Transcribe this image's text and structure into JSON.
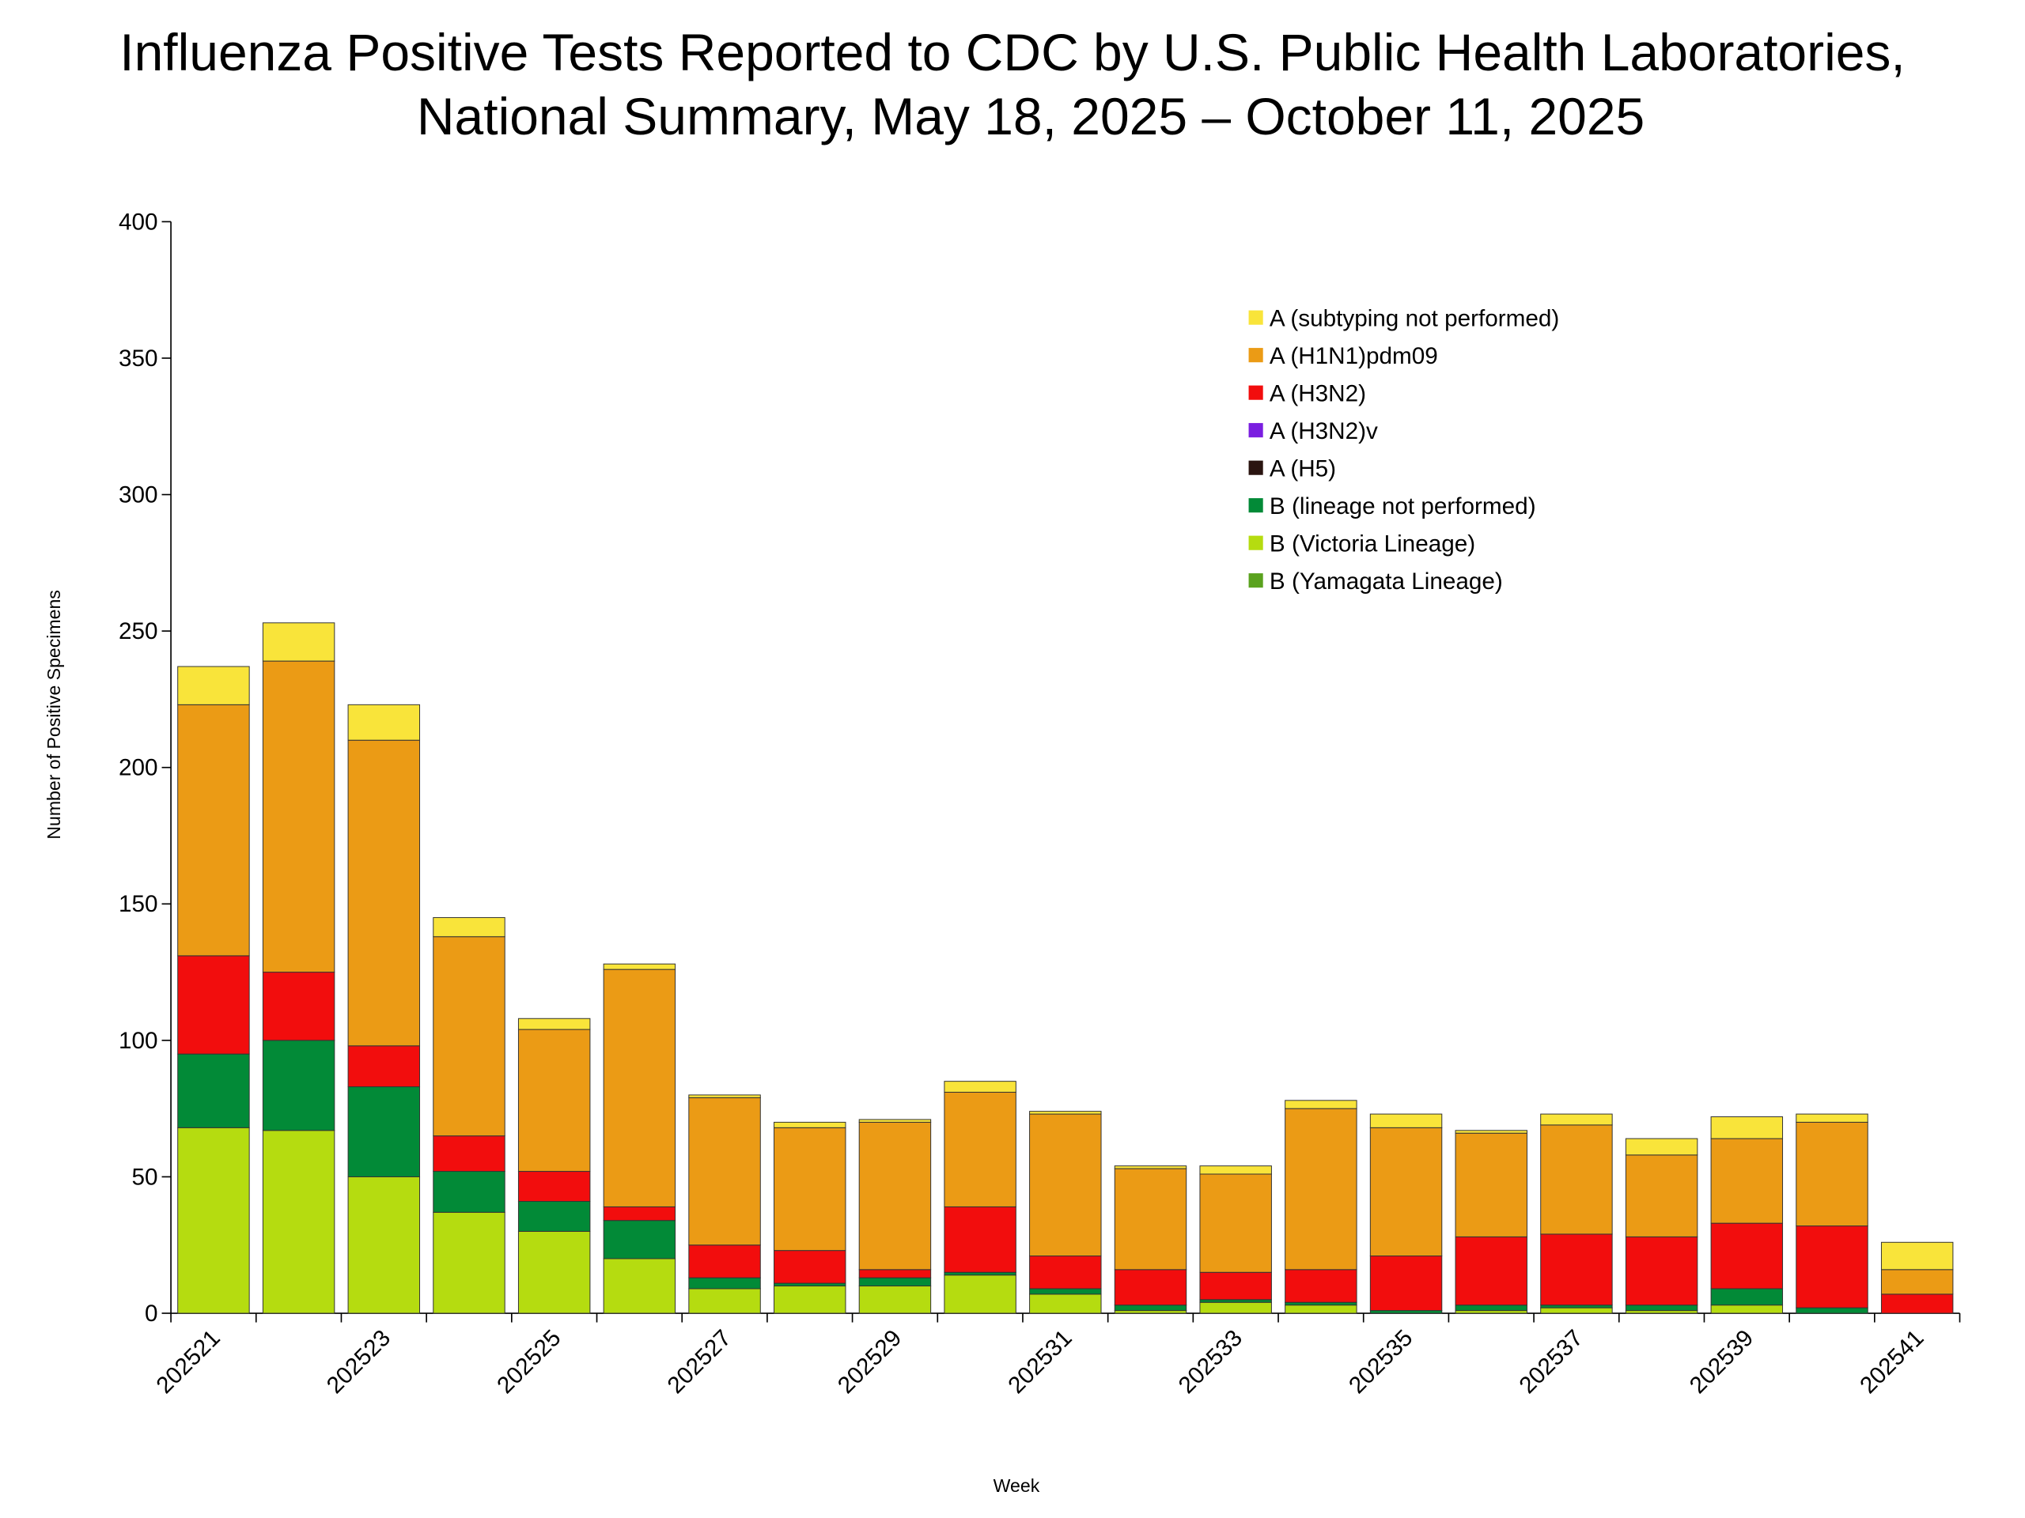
{
  "chart_data": {
    "type": "stacked-bar",
    "title": "Influenza Positive Tests Reported to CDC by U.S. Public Health Laboratories,",
    "subtitle": "National Summary, May 18, 2025 – October 11, 2025",
    "x_label": "Week",
    "y_label": "Number of Positive Specimens",
    "categories": [
      "202521",
      null,
      "202523",
      null,
      "202525",
      null,
      "202527",
      null,
      "202529",
      null,
      "202531",
      null,
      "202533",
      null,
      "202535",
      null,
      "202537",
      null,
      "202539",
      null,
      "202541"
    ],
    "series": [
      {
        "name": "A (subtyping not performed)",
        "color": "#f9e43a",
        "values": [
          14,
          14,
          13,
          7,
          4,
          2,
          1,
          2,
          1,
          4,
          1,
          1,
          3,
          3,
          5,
          1,
          4,
          6,
          8,
          3,
          10
        ]
      },
      {
        "name": "A (H1N1)pdm09",
        "color": "#eb9b15",
        "values": [
          92,
          114,
          112,
          73,
          52,
          87,
          54,
          45,
          54,
          42,
          52,
          37,
          36,
          59,
          47,
          38,
          40,
          30,
          31,
          38,
          9
        ]
      },
      {
        "name": "A (H3N2)",
        "color": "#f20d0d",
        "values": [
          36,
          25,
          15,
          13,
          11,
          5,
          12,
          12,
          3,
          24,
          12,
          13,
          10,
          12,
          20,
          25,
          26,
          25,
          24,
          30,
          7
        ]
      },
      {
        "name": "A (H3N2)v",
        "color": "#7a1ee0",
        "values": [
          0,
          0,
          0,
          0,
          0,
          0,
          0,
          0,
          0,
          0,
          0,
          0,
          0,
          0,
          0,
          0,
          0,
          0,
          0,
          0,
          0
        ]
      },
      {
        "name": "A (H5)",
        "color": "#2a1410",
        "values": [
          0,
          0,
          0,
          0,
          0,
          0,
          0,
          0,
          0,
          0,
          0,
          0,
          0,
          0,
          0,
          0,
          0,
          0,
          0,
          0,
          0
        ]
      },
      {
        "name": "B (lineage not performed)",
        "color": "#028a37",
        "values": [
          27,
          33,
          33,
          15,
          11,
          14,
          4,
          1,
          3,
          1,
          2,
          2,
          1,
          1,
          1,
          2,
          1,
          2,
          6,
          2,
          0
        ]
      },
      {
        "name": "B (Victoria Lineage)",
        "color": "#b5dc10",
        "values": [
          68,
          67,
          50,
          37,
          30,
          20,
          9,
          10,
          10,
          14,
          7,
          1,
          4,
          3,
          0,
          1,
          2,
          1,
          3,
          0,
          0
        ]
      },
      {
        "name": "B (Yamagata Lineage)",
        "color": "#5aa21e",
        "values": [
          0,
          0,
          0,
          0,
          0,
          0,
          0,
          0,
          0,
          0,
          0,
          0,
          0,
          0,
          0,
          0,
          0,
          0,
          0,
          0,
          0
        ]
      }
    ],
    "ylim": [
      0,
      400
    ],
    "yticks": [
      0,
      50,
      100,
      150,
      200,
      250,
      300,
      350,
      400
    ],
    "grid": false,
    "legend": "top-right"
  }
}
